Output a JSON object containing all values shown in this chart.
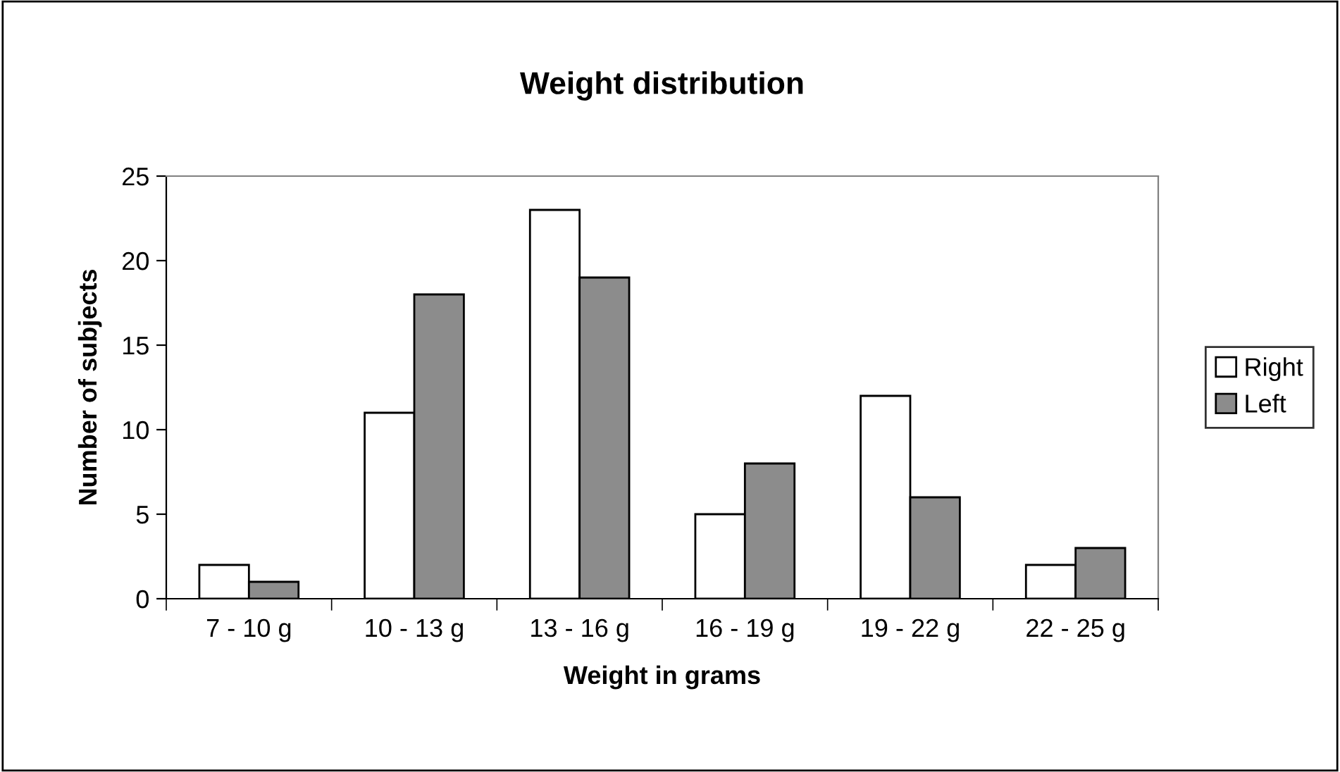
{
  "chart_data": {
    "type": "bar",
    "title": "Weight distribution",
    "xlabel": "Weight in grams",
    "ylabel": "Number of subjects",
    "categories": [
      "7 - 10 g",
      "10 - 13 g",
      "13 - 16 g",
      "16 - 19 g",
      "19 - 22 g",
      "22 - 25 g"
    ],
    "series": [
      {
        "name": "Right",
        "color": "#ffffff",
        "values": [
          2,
          11,
          23,
          5,
          12,
          2
        ]
      },
      {
        "name": "Left",
        "color": "#8c8c8c",
        "values": [
          1,
          18,
          19,
          8,
          6,
          3
        ]
      }
    ],
    "ylim": [
      0,
      25
    ],
    "yticks": [
      0,
      5,
      10,
      15,
      20,
      25
    ],
    "grid": false,
    "legend": "right"
  }
}
